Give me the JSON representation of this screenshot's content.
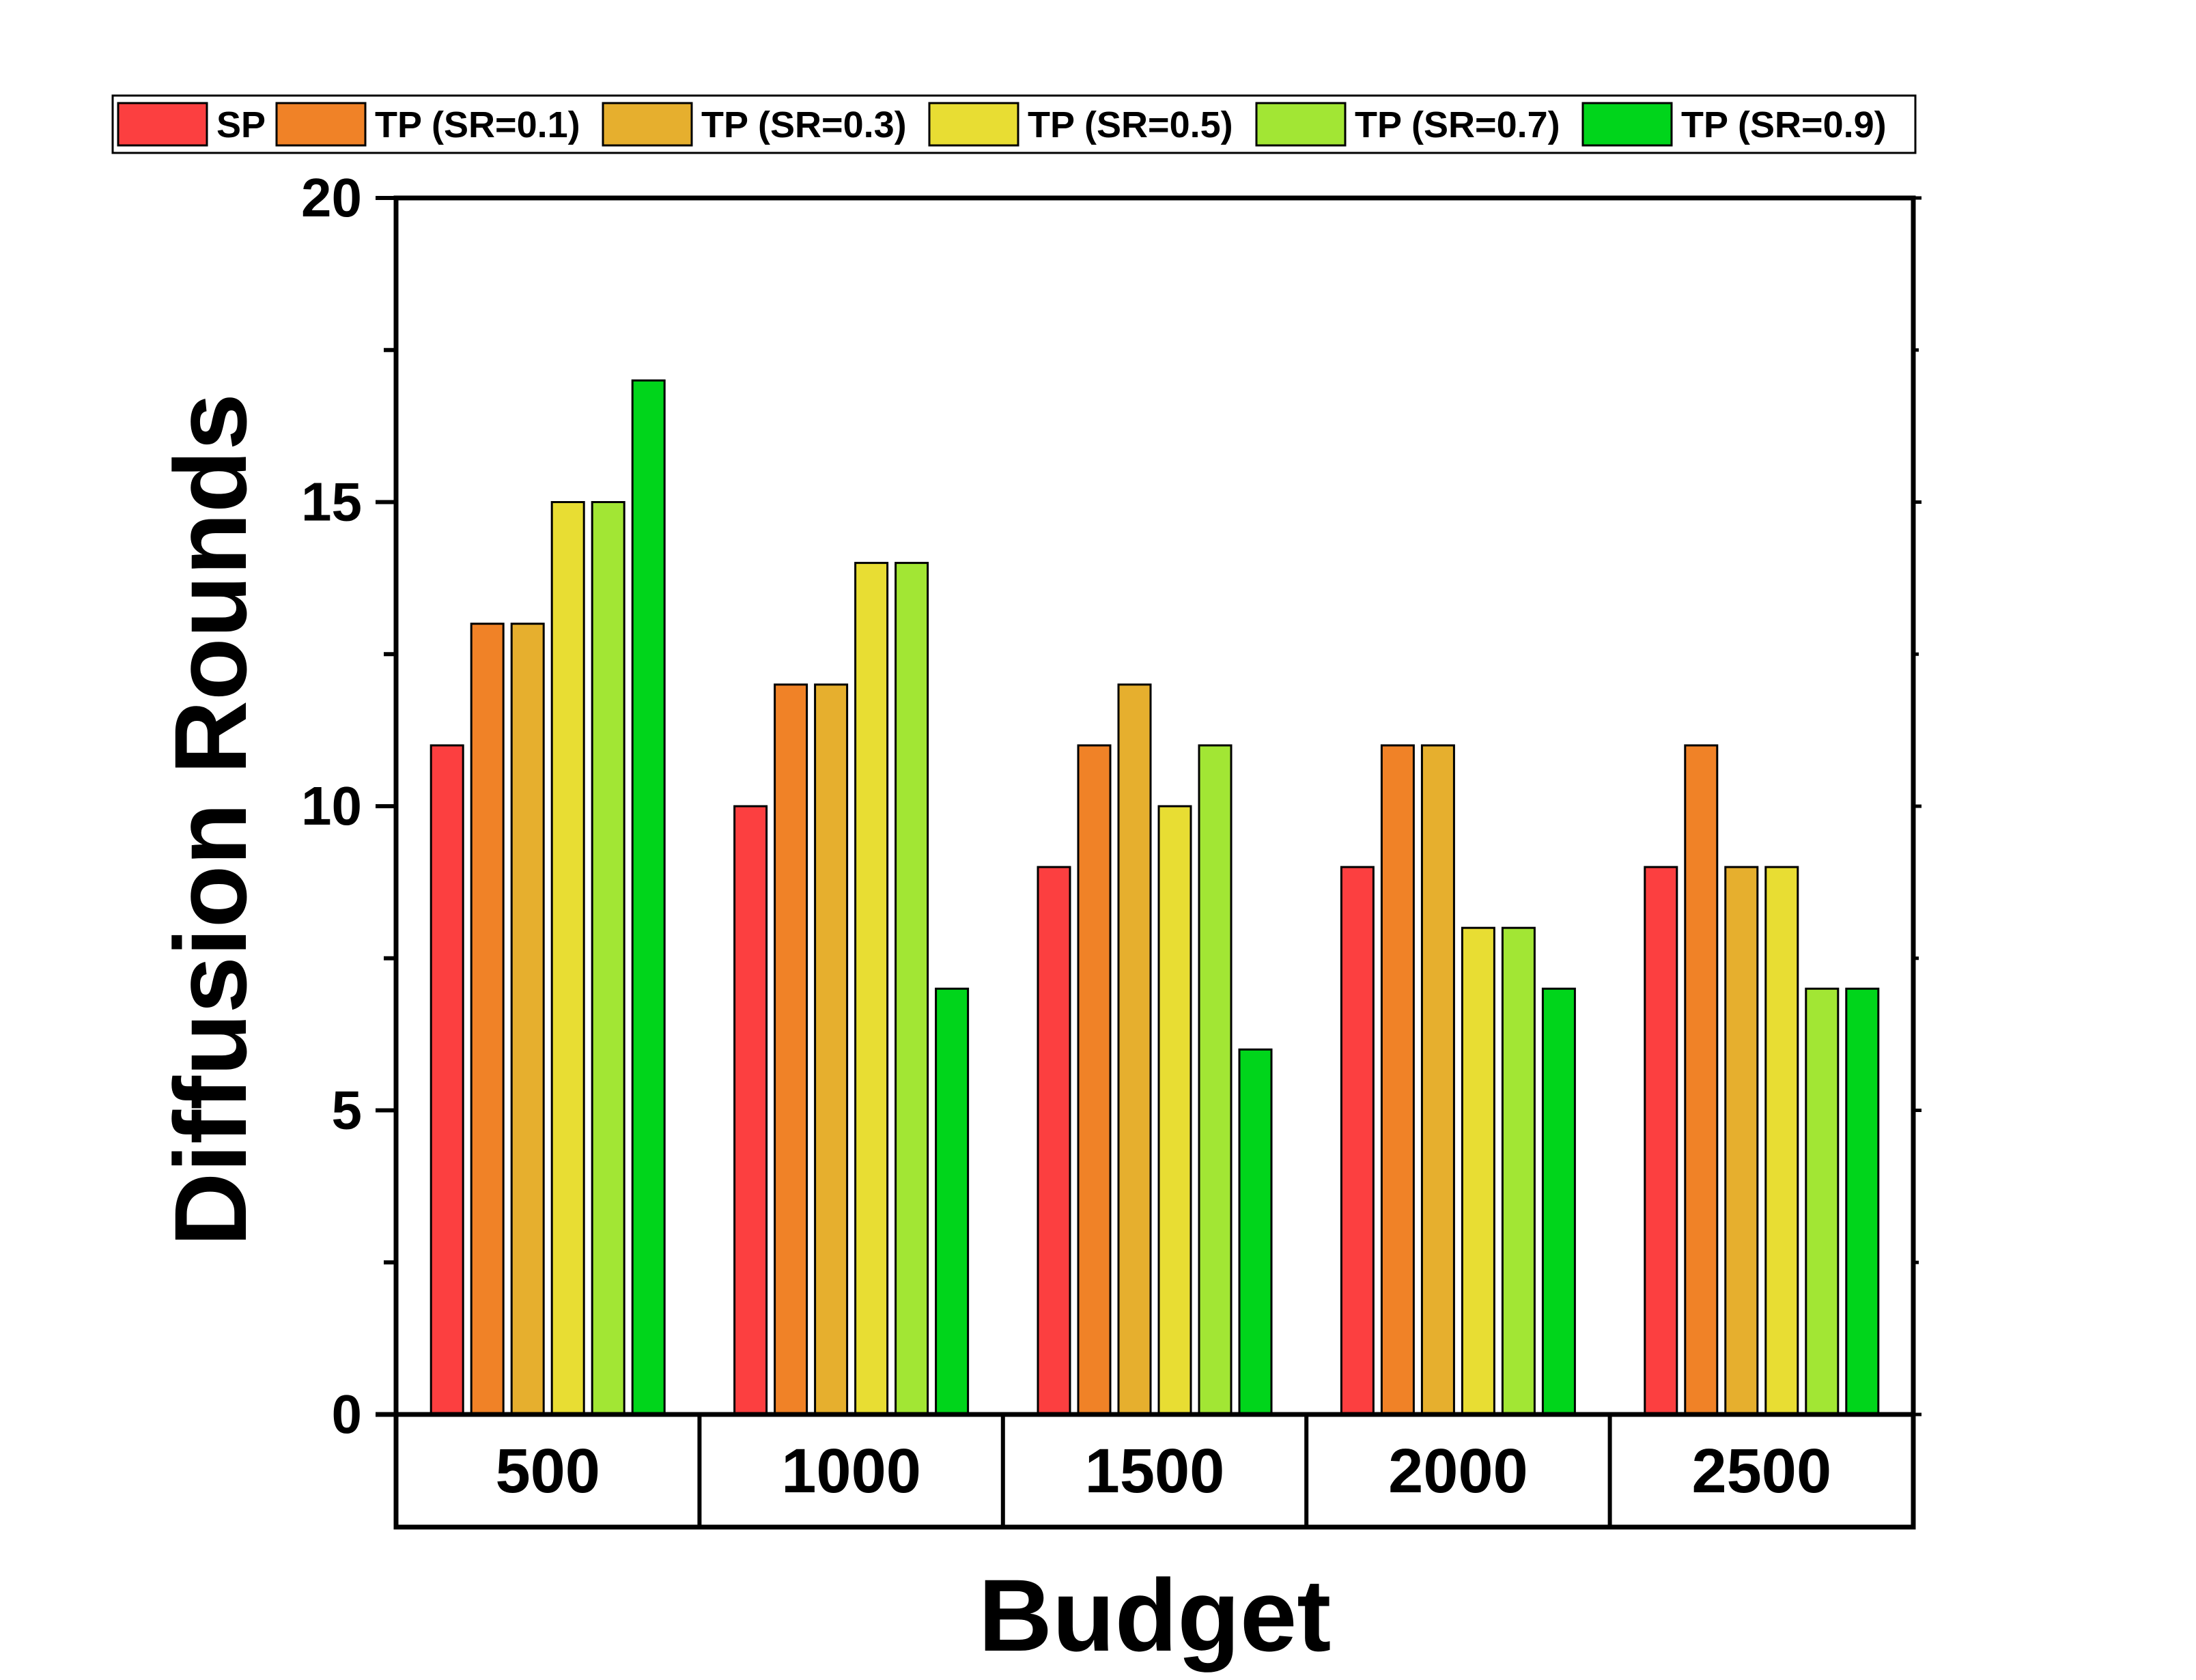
{
  "chart_data": {
    "type": "bar",
    "title": "",
    "xlabel": "Budget",
    "ylabel": "Diffusion Rounds",
    "categories": [
      "500",
      "1000",
      "1500",
      "2000",
      "2500"
    ],
    "ylim": [
      0,
      20
    ],
    "yticks": [
      0,
      5,
      10,
      15,
      20
    ],
    "grid": false,
    "legend_position": "top",
    "series": [
      {
        "name": "SP",
        "color": "#fc3f40",
        "values": [
          11,
          10,
          9,
          9,
          9
        ]
      },
      {
        "name": "TP (SR=0.1)",
        "color": "#f08227",
        "values": [
          13,
          12,
          11,
          11,
          11
        ]
      },
      {
        "name": "TP (SR=0.3)",
        "color": "#e6af2e",
        "values": [
          13,
          12,
          12,
          11,
          9
        ]
      },
      {
        "name": "TP (SR=0.5)",
        "color": "#e8dd33",
        "values": [
          15,
          14,
          10,
          8,
          9
        ]
      },
      {
        "name": "TP (SR=0.7)",
        "color": "#a2e634",
        "values": [
          15,
          14,
          11,
          8,
          7
        ]
      },
      {
        "name": "TP (SR=0.9)",
        "color": "#00d51b",
        "values": [
          17,
          7,
          6,
          7,
          7
        ]
      }
    ]
  }
}
